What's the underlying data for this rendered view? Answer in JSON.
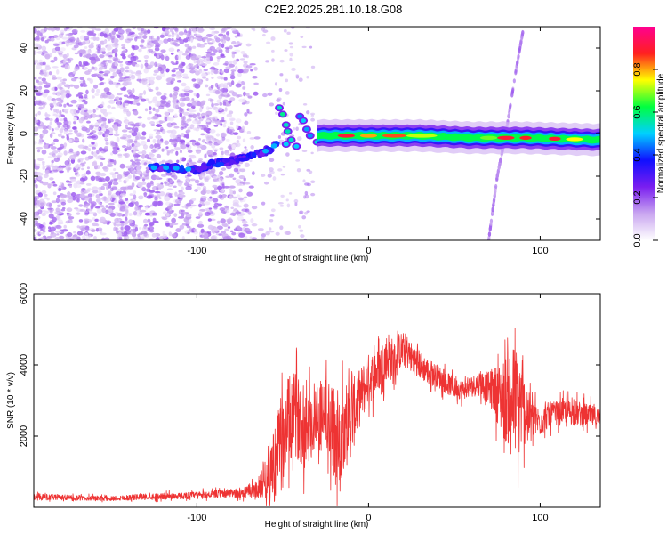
{
  "title": "C2E2.2025.281.10.18.G08",
  "chart_data": [
    {
      "type": "heatmap",
      "name": "spectrogram",
      "xlabel": "Height of straight line (km)",
      "ylabel": "Frequency (Hz)",
      "xlim": [
        -195,
        135
      ],
      "ylim": [
        -50,
        50
      ],
      "xticks": [
        -100,
        0,
        100
      ],
      "yticks": [
        -40,
        -20,
        0,
        20,
        40
      ],
      "colorbar": {
        "label": "Normalized spectral amplitude",
        "range": [
          0,
          1
        ],
        "ticks": [
          "0.0",
          "0.2",
          "0.4",
          "0.6",
          "0.8"
        ],
        "colors": [
          "#ffffff",
          "#c9a6f0",
          "#7a1ef0",
          "#1010ff",
          "#00d0ff",
          "#00ff40",
          "#ffff00",
          "#ff2020",
          "#ff0090"
        ]
      },
      "features": [
        {
          "name": "diffuse noise",
          "x_range": [
            -195,
            -62
          ],
          "y_range": [
            -50,
            50
          ],
          "amplitude": 0.12
        },
        {
          "name": "low-frequency trace",
          "x": [
            -128,
            -115,
            -100,
            -90,
            -80,
            -70,
            -62,
            -57,
            -52
          ],
          "y": [
            -16,
            -16,
            -17,
            -14,
            -13,
            -11,
            -9,
            -7,
            -4
          ],
          "amplitude": 0.3
        },
        {
          "name": "main carrier",
          "x": [
            -30,
            0,
            30,
            60,
            90,
            135
          ],
          "y": [
            -1,
            -1,
            -1,
            -2,
            -2,
            -3
          ],
          "amplitude": 0.95
        },
        {
          "name": "drifting line",
          "x": [
            70,
            75,
            80,
            86,
            90
          ],
          "y": [
            -50,
            -20,
            0,
            30,
            48
          ],
          "amplitude": 0.12
        }
      ]
    },
    {
      "type": "line",
      "name": "snr",
      "xlabel": "Height of straight line (km)",
      "ylabel": "SNR (10 * v/v)",
      "xlim": [
        -195,
        135
      ],
      "ylim": [
        0,
        6000
      ],
      "xticks": [
        -100,
        0,
        100
      ],
      "yticks": [
        2000,
        4000,
        6000
      ],
      "color": "#ee3333",
      "series": [
        {
          "name": "SNR",
          "x": [
            -195,
            -170,
            -150,
            -130,
            -110,
            -90,
            -75,
            -65,
            -55,
            -48,
            -45,
            -42,
            -40,
            -35,
            -30,
            -25,
            -22,
            -20,
            -17,
            -15,
            -12,
            -10,
            -5,
            0,
            5,
            10,
            12,
            15,
            18,
            22,
            25,
            30,
            35,
            40,
            45,
            50,
            55,
            60,
            65,
            70,
            75,
            78,
            80,
            83,
            85,
            88,
            90,
            92,
            95,
            100,
            105,
            110,
            115,
            120,
            125,
            130,
            135
          ],
          "y": [
            300,
            260,
            250,
            300,
            320,
            370,
            400,
            500,
            1200,
            2100,
            2500,
            2600,
            2400,
            2300,
            2600,
            2700,
            2200,
            2000,
            1800,
            2400,
            2300,
            2500,
            3100,
            3600,
            3800,
            4200,
            4300,
            4000,
            4400,
            4400,
            4200,
            4000,
            3800,
            3700,
            3500,
            3350,
            3300,
            3400,
            3500,
            3350,
            3200,
            3000,
            3050,
            3100,
            3000,
            2900,
            2800,
            2600,
            2500,
            2400,
            2600,
            2650,
            2700,
            2650,
            2600,
            2550,
            2500
          ],
          "amplitude": [
            100,
            80,
            80,
            100,
            100,
            120,
            150,
            250,
            1200,
            1600,
            1400,
            1300,
            1300,
            1200,
            1200,
            1100,
            1500,
            1600,
            1700,
            1400,
            1300,
            1200,
            900,
            800,
            700,
            700,
            800,
            650,
            600,
            550,
            500,
            450,
            400,
            350,
            350,
            320,
            300,
            330,
            400,
            500,
            900,
            1200,
            1400,
            1600,
            1800,
            1600,
            1200,
            900,
            600,
            450,
            400,
            350,
            380,
            400,
            380,
            350,
            350
          ]
        }
      ]
    }
  ]
}
